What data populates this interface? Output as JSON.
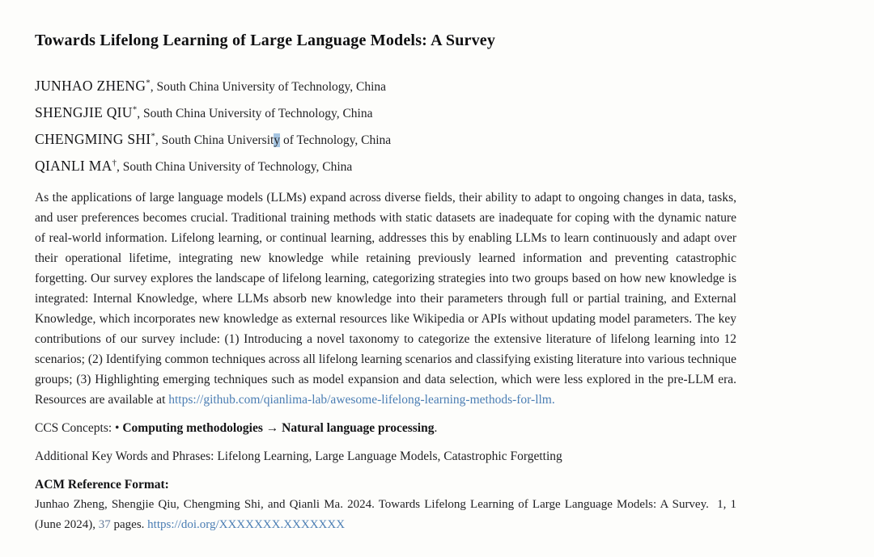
{
  "paper": {
    "title": "Towards Lifelong Learning of Large Language Models: A Survey"
  },
  "authors": [
    {
      "name": "JUNHAO ZHENG",
      "mark": "*",
      "affiliation": ", South China University of Technology, China"
    },
    {
      "name": "SHENGJIE QIU",
      "mark": "*",
      "affiliation": ", South China University of Technology, China"
    },
    {
      "name": "CHENGMING SHI",
      "mark": "*",
      "aff_pre": ", South China Universit",
      "aff_highlight": "y",
      "aff_post": " of Technology, China"
    },
    {
      "name": "QIANLI MA",
      "mark": "†",
      "affiliation": ", South China University of Technology, China"
    }
  ],
  "abstract": {
    "text": "As the applications of large language models (LLMs) expand across diverse fields, their ability to adapt to ongoing changes in data, tasks, and user preferences becomes crucial. Traditional training methods with static datasets are inadequate for coping with the dynamic nature of real-world information. Lifelong learning, or continual learning, addresses this by enabling LLMs to learn continuously and adapt over their operational lifetime, integrating new knowledge while retaining previously learned information and preventing catastrophic forgetting. Our survey explores the landscape of lifelong learning, categorizing strategies into two groups based on how new knowledge is integrated: Internal Knowledge, where LLMs absorb new knowledge into their parameters through full or partial training, and External Knowledge, which incorporates new knowledge as external resources like Wikipedia or APIs without updating model parameters. The key contributions of our survey include: (1) Introducing a novel taxonomy to categorize the extensive literature of lifelong learning into 12 scenarios; (2) Identifying common techniques across all lifelong learning scenarios and classifying existing literature into various technique groups; (3) Highlighting emerging techniques such as model expansion and data selection, which were less explored in the pre-LLM era. Resources are available at ",
    "link_text": "https://github.com/qianlima-lab/awesome-lifelong-learning-methods-for-llm."
  },
  "ccs": {
    "label": "CCS Concepts: ",
    "bullet": "• ",
    "concept1": "Computing methodologies",
    "arrow": " → ",
    "concept2": "Natural language processing",
    "period": "."
  },
  "keywords": {
    "text": "Additional Key Words and Phrases: Lifelong Learning, Large Language Models, Catastrophic Forgetting"
  },
  "reference": {
    "heading": "ACM Reference Format:",
    "text_before_pages": "Junhao Zheng, Shengjie Qiu, Chengming Shi, and Qianli Ma. 2024. Towards Lifelong Learning of Large Language Models: A Survey.  1, 1 (June 2024), ",
    "pages_number": "37",
    "text_after_pages": " pages. ",
    "doi_link": "https://doi.org/XXXXXXX.XXXXXXX"
  }
}
